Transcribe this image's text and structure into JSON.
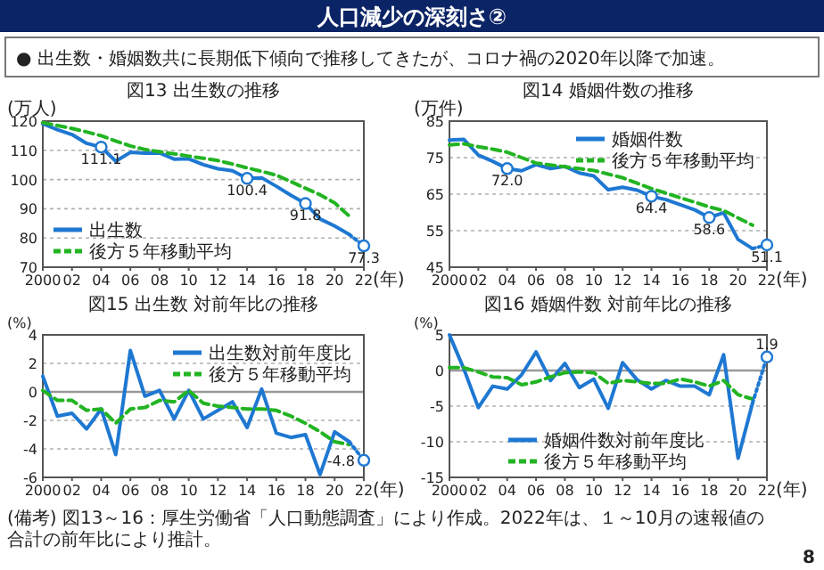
{
  "chart_data": [
    {
      "type": "other",
      "title": "人口減少の深刻さ②",
      "annotations": [
        "● 出生数・婚姻数共に長期低下傾向で推移してきたが、コロナ禍の2020年以降で加速。",
        "(備考) 図13～16：厚生労働省「人口動態調査」により作成。2022年は、１～10月の速報値の合計の前年比により推計。",
        "8"
      ]
    },
    {
      "type": "line",
      "title": "図13 出生数の推移",
      "ylabel": "(万人)",
      "xlabel": "(年)",
      "xlim": [
        2000,
        2022
      ],
      "ylim": [
        70,
        120
      ],
      "yticks": [
        70,
        80,
        90,
        100,
        110,
        120
      ],
      "xticks": [
        {
          "value": 2000,
          "label": "2000"
        },
        {
          "value": 2002,
          "label": "02"
        },
        {
          "value": 2004,
          "label": "04"
        },
        {
          "value": 2006,
          "label": "06"
        },
        {
          "value": 2008,
          "label": "08"
        },
        {
          "value": 2010,
          "label": "10"
        },
        {
          "value": 2012,
          "label": "12"
        },
        {
          "value": 2014,
          "label": "14"
        },
        {
          "value": 2016,
          "label": "16"
        },
        {
          "value": 2018,
          "label": "18"
        },
        {
          "value": 2020,
          "label": "20"
        },
        {
          "value": 2022,
          "label": "22"
        }
      ],
      "grid": "y",
      "legend": "bottom left",
      "series": [
        {
          "name": "出生数",
          "color": "#1e78d2",
          "x": [
            2000,
            2001,
            2002,
            2003,
            2004,
            2005,
            2006,
            2007,
            2008,
            2009,
            2010,
            2011,
            2012,
            2013,
            2014,
            2015,
            2016,
            2017,
            2018,
            2019,
            2020,
            2021
          ],
          "values": [
            119.1,
            117.1,
            115.4,
            112.4,
            111.1,
            106.3,
            109.3,
            109.0,
            109.1,
            107.0,
            107.1,
            105.1,
            103.7,
            103.0,
            100.4,
            100.6,
            97.7,
            94.6,
            91.8,
            86.5,
            84.1,
            81.2
          ]
        },
        {
          "name": "後方５年移動平均",
          "color": "#22b422",
          "line_style": "dashed",
          "x": [
            2000,
            2001,
            2002,
            2003,
            2004,
            2005,
            2006,
            2007,
            2008,
            2009,
            2010,
            2011,
            2012,
            2013,
            2014,
            2015,
            2016,
            2017,
            2018,
            2019,
            2020,
            2021
          ],
          "values": [
            119.5,
            118.5,
            117.5,
            116.3,
            115,
            113.2,
            111.5,
            110.3,
            109.5,
            108.8,
            108,
            107.3,
            106.5,
            105.3,
            104,
            102.8,
            101.5,
            99.3,
            97,
            94.8,
            92,
            87.5
          ]
        },
        {
          "color": "#1e78d2",
          "line_style": "dotted",
          "x": [
            2021,
            2022
          ],
          "values": [
            81.2,
            77.3
          ]
        },
        {
          "type": "scatter",
          "color": "#1e78d2",
          "x": [
            2004,
            2014,
            2018,
            2022
          ],
          "values": [
            111.1,
            100.4,
            91.8,
            77.3
          ],
          "marker": "circle",
          "value_labels": [
            "111.1",
            "100.4",
            "91.8",
            "77.3"
          ]
        }
      ]
    },
    {
      "type": "line",
      "title": "図14 婚姻件数の推移",
      "ylabel": "(万件)",
      "xlabel": "(年)",
      "xlim": [
        2000,
        2022
      ],
      "ylim": [
        45,
        85
      ],
      "yticks": [
        45,
        55,
        65,
        75,
        85
      ],
      "xticks": [
        {
          "value": 2000,
          "label": "2000"
        },
        {
          "value": 2002,
          "label": "02"
        },
        {
          "value": 2004,
          "label": "04"
        },
        {
          "value": 2006,
          "label": "06"
        },
        {
          "value": 2008,
          "label": "08"
        },
        {
          "value": 2010,
          "label": "10"
        },
        {
          "value": 2012,
          "label": "12"
        },
        {
          "value": 2014,
          "label": "14"
        },
        {
          "value": 2016,
          "label": "16"
        },
        {
          "value": 2018,
          "label": "18"
        },
        {
          "value": 2020,
          "label": "20"
        },
        {
          "value": 2022,
          "label": "22"
        }
      ],
      "grid": "y",
      "legend": "top right",
      "series": [
        {
          "name": "婚姻件数",
          "color": "#1e78d2",
          "x": [
            2000,
            2001,
            2002,
            2003,
            2004,
            2005,
            2006,
            2007,
            2008,
            2009,
            2010,
            2011,
            2012,
            2013,
            2014,
            2015,
            2016,
            2017,
            2018,
            2019,
            2020,
            2021
          ],
          "values": [
            79.8,
            80.0,
            75.7,
            74.0,
            72.0,
            71.4,
            73.1,
            72.0,
            72.6,
            70.8,
            70.0,
            66.2,
            66.9,
            66.1,
            64.4,
            63.5,
            62.1,
            60.7,
            58.6,
            59.9,
            52.6,
            50.1
          ]
        },
        {
          "name": "後方５年移動平均",
          "color": "#22b422",
          "line_style": "dashed",
          "x": [
            2000,
            2001,
            2002,
            2003,
            2004,
            2005,
            2006,
            2007,
            2008,
            2009,
            2010,
            2011,
            2012,
            2013,
            2014,
            2015,
            2016,
            2017,
            2018,
            2019,
            2020,
            2021
          ],
          "values": [
            78.5,
            78.8,
            78,
            77.3,
            76.5,
            75,
            73.5,
            73,
            72.5,
            72,
            71.5,
            70.5,
            69.5,
            68,
            66.5,
            65.3,
            64,
            62.8,
            61.5,
            60.5,
            58.5,
            56.5
          ]
        },
        {
          "color": "#1e78d2",
          "line_style": "dotted",
          "x": [
            2021,
            2022
          ],
          "values": [
            50.1,
            51.1
          ]
        },
        {
          "type": "scatter",
          "color": "#1e78d2",
          "x": [
            2004,
            2014,
            2018,
            2022
          ],
          "values": [
            72.0,
            64.4,
            58.6,
            51.1
          ],
          "marker": "circle",
          "value_labels": [
            "72.0",
            "64.4",
            "58.6",
            "51.1"
          ]
        }
      ]
    },
    {
      "type": "line",
      "title": "図15 出生数 対前年比の推移",
      "ylabel": "(%)",
      "xlabel": "(年)",
      "xlim": [
        2000,
        2022
      ],
      "ylim": [
        -6,
        4
      ],
      "yticks": [
        -6,
        -4,
        -2,
        0,
        2,
        4
      ],
      "xticks": [
        {
          "value": 2000,
          "label": "2000"
        },
        {
          "value": 2002,
          "label": "02"
        },
        {
          "value": 2004,
          "label": "04"
        },
        {
          "value": 2006,
          "label": "06"
        },
        {
          "value": 2008,
          "label": "08"
        },
        {
          "value": 2010,
          "label": "10"
        },
        {
          "value": 2012,
          "label": "12"
        },
        {
          "value": 2014,
          "label": "14"
        },
        {
          "value": 2016,
          "label": "16"
        },
        {
          "value": 2018,
          "label": "18"
        },
        {
          "value": 2020,
          "label": "20"
        },
        {
          "value": 2022,
          "label": "22"
        }
      ],
      "grid": "y",
      "legend": "top right",
      "ref_lines": [
        {
          "axis": "y",
          "value": 0,
          "color": "#999999"
        }
      ],
      "series": [
        {
          "name": "出生数対前年度比",
          "color": "#1e78d2",
          "x": [
            2000,
            2001,
            2002,
            2003,
            2004,
            2005,
            2006,
            2007,
            2008,
            2009,
            2010,
            2011,
            2012,
            2013,
            2014,
            2015,
            2016,
            2017,
            2018,
            2019,
            2020,
            2021
          ],
          "values": [
            1.1,
            -1.7,
            -1.5,
            -2.6,
            -1.2,
            -4.4,
            2.9,
            -0.3,
            0.1,
            -1.9,
            0.1,
            -1.9,
            -1.3,
            -0.7,
            -2.5,
            0.2,
            -2.9,
            -3.2,
            -3.0,
            -5.8,
            -2.8,
            -3.5
          ]
        },
        {
          "name": "後方５年移動平均",
          "color": "#22b422",
          "line_style": "dashed",
          "x": [
            2000,
            2001,
            2002,
            2003,
            2004,
            2005,
            2006,
            2007,
            2008,
            2009,
            2010,
            2011,
            2012,
            2013,
            2014,
            2015,
            2016,
            2017,
            2018,
            2019,
            2020,
            2021
          ],
          "values": [
            0.1,
            -0.6,
            -0.6,
            -1.3,
            -1.2,
            -2.2,
            -1.2,
            -1.1,
            -0.6,
            -0.7,
            0.1,
            -0.8,
            -1.0,
            -1.1,
            -1.2,
            -1.2,
            -1.3,
            -1.7,
            -2.2,
            -2.8,
            -3.5,
            -3.7
          ]
        },
        {
          "color": "#1e78d2",
          "line_style": "dotted",
          "x": [
            2021,
            2022
          ],
          "values": [
            -3.5,
            -4.8
          ]
        },
        {
          "type": "scatter",
          "color": "#1e78d2",
          "x": [
            2022
          ],
          "values": [
            -4.8
          ],
          "marker": "circle",
          "value_labels": [
            "-4.8"
          ]
        }
      ]
    },
    {
      "type": "line",
      "title": "図16 婚姻件数 対前年比の推移",
      "ylabel": "(%)",
      "xlabel": "(年)",
      "xlim": [
        2000,
        2022
      ],
      "ylim": [
        -15,
        5
      ],
      "yticks": [
        -15,
        -10,
        -5,
        0,
        5
      ],
      "xticks": [
        {
          "value": 2000,
          "label": "2000"
        },
        {
          "value": 2002,
          "label": "02"
        },
        {
          "value": 2004,
          "label": "04"
        },
        {
          "value": 2006,
          "label": "06"
        },
        {
          "value": 2008,
          "label": "08"
        },
        {
          "value": 2010,
          "label": "10"
        },
        {
          "value": 2012,
          "label": "12"
        },
        {
          "value": 2014,
          "label": "14"
        },
        {
          "value": 2016,
          "label": "16"
        },
        {
          "value": 2018,
          "label": "18"
        },
        {
          "value": 2020,
          "label": "20"
        },
        {
          "value": 2022,
          "label": "22"
        }
      ],
      "grid": "y",
      "legend": "bottom",
      "ref_lines": [
        {
          "axis": "y",
          "value": 0,
          "color": "#999999"
        }
      ],
      "series": [
        {
          "name": "婚姻件数対前年度比",
          "color": "#1e78d2",
          "x": [
            2000,
            2001,
            2002,
            2003,
            2004,
            2005,
            2006,
            2007,
            2008,
            2009,
            2010,
            2011,
            2012,
            2013,
            2014,
            2015,
            2016,
            2017,
            2018,
            2019,
            2020,
            2021
          ],
          "values": [
            5.0,
            0.2,
            -5.2,
            -2.2,
            -2.6,
            -0.6,
            2.6,
            -1.4,
            1.0,
            -2.4,
            -1.2,
            -5.3,
            1.1,
            -1.3,
            -2.6,
            -1.4,
            -2.2,
            -2.2,
            -3.4,
            2.2,
            -12.3,
            -4.6
          ]
        },
        {
          "name": "後方５年移動平均",
          "color": "#22b422",
          "line_style": "dashed",
          "x": [
            2000,
            2001,
            2002,
            2003,
            2004,
            2005,
            2006,
            2007,
            2008,
            2009,
            2010,
            2011,
            2012,
            2013,
            2014,
            2015,
            2016,
            2017,
            2018,
            2019,
            2020,
            2021
          ],
          "values": [
            0.4,
            0.4,
            -0.2,
            -0.9,
            -1.0,
            -2.0,
            -1.6,
            -0.9,
            -0.3,
            -0.2,
            -0.3,
            -1.8,
            -1.4,
            -1.6,
            -1.8,
            -1.8,
            -1.2,
            -1.6,
            -2.2,
            -1.4,
            -3.4,
            -4.0
          ]
        },
        {
          "color": "#1e78d2",
          "line_style": "dotted",
          "x": [
            2021,
            2022
          ],
          "values": [
            -4.6,
            1.9
          ]
        },
        {
          "type": "scatter",
          "color": "#1e78d2",
          "x": [
            2022
          ],
          "values": [
            1.9
          ],
          "marker": "circle",
          "value_labels": [
            "1.9"
          ]
        }
      ]
    }
  ]
}
